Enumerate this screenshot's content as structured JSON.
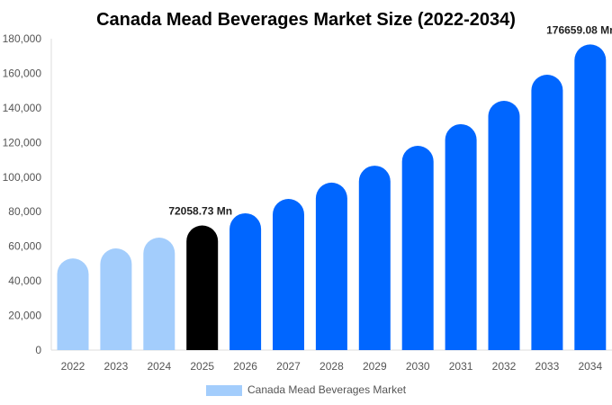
{
  "chart_data": {
    "type": "bar",
    "title": "Canada Mead Beverages Market Size (2022-2034)",
    "categories": [
      "2022",
      "2023",
      "2024",
      "2025",
      "2026",
      "2027",
      "2028",
      "2029",
      "2030",
      "2031",
      "2032",
      "2033",
      "2034"
    ],
    "series": [
      {
        "name": "Canada Mead Beverages Market",
        "values": [
          53000,
          58800,
          65000,
          72058.73,
          79100,
          87400,
          96800,
          106600,
          118100,
          130600,
          144100,
          159200,
          176659.08
        ]
      }
    ],
    "data_labels": [
      {
        "category": "2025",
        "text": "72058.73 Mn"
      },
      {
        "category": "2034",
        "text": "176659.08 Mn"
      }
    ],
    "ylim": [
      0,
      180000
    ],
    "yticks": [
      0,
      20000,
      40000,
      60000,
      80000,
      100000,
      120000,
      140000,
      160000,
      180000
    ],
    "ytick_labels": [
      "0",
      "20,000",
      "40,000",
      "60,000",
      "80,000",
      "100,000",
      "120,000",
      "140,000",
      "160,000",
      "180,000"
    ],
    "xlabel": "",
    "ylabel": "",
    "grid": false,
    "legend_position": "bottom",
    "colors": {
      "historical": "#a3cdfc",
      "current": "#000000",
      "forecast": "#0066ff"
    },
    "color_groups": [
      "historical",
      "historical",
      "historical",
      "current",
      "forecast",
      "forecast",
      "forecast",
      "forecast",
      "forecast",
      "forecast",
      "forecast",
      "forecast",
      "forecast"
    ]
  }
}
